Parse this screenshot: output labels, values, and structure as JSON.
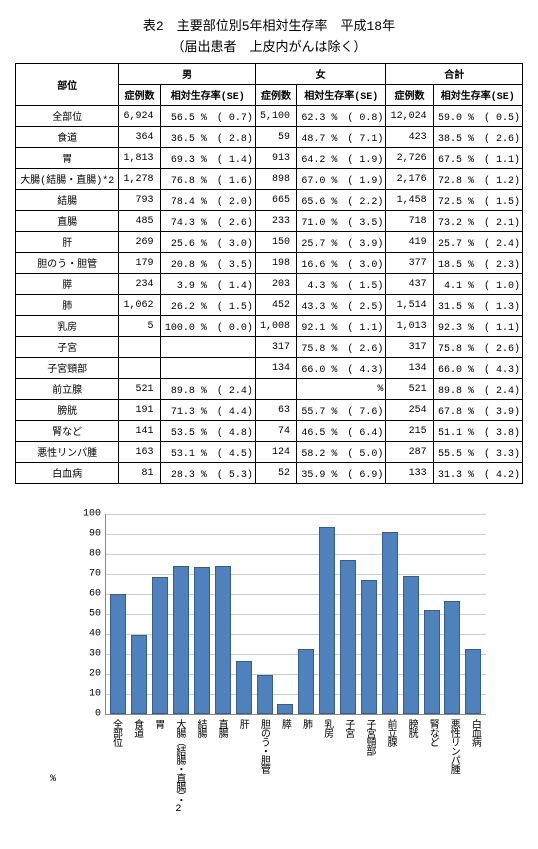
{
  "title": "表2　主要部位別5年相対生存率　平成18年",
  "subtitle": "（届出患者　上皮内がんは除く）",
  "headers": {
    "site": "部位",
    "male": "男",
    "female": "女",
    "total": "合計",
    "cases": "症例数",
    "survival": "相対生存率(SE)"
  },
  "rows": [
    {
      "site": "全部位",
      "m_n": "6,924",
      "m_s": "56.5 %",
      "m_se": "( 0.7)",
      "f_n": "5,100",
      "f_s": "62.3 %",
      "f_se": "( 0.8)",
      "t_n": "12,024",
      "t_s": "59.0 %",
      "t_se": "( 0.5)"
    },
    {
      "site": "食道",
      "m_n": "364",
      "m_s": "36.5 %",
      "m_se": "( 2.8)",
      "f_n": "59",
      "f_s": "48.7 %",
      "f_se": "( 7.1)",
      "t_n": "423",
      "t_s": "38.5 %",
      "t_se": "( 2.6)"
    },
    {
      "site": "胃",
      "m_n": "1,813",
      "m_s": "69.3 %",
      "m_se": "( 1.4)",
      "f_n": "913",
      "f_s": "64.2 %",
      "f_se": "( 1.9)",
      "t_n": "2,726",
      "t_s": "67.5 %",
      "t_se": "( 1.1)"
    },
    {
      "site": "大腸(結腸・直腸)*2",
      "m_n": "1,278",
      "m_s": "76.8 %",
      "m_se": "( 1.6)",
      "f_n": "898",
      "f_s": "67.0 %",
      "f_se": "( 1.9)",
      "t_n": "2,176",
      "t_s": "72.8 %",
      "t_se": "( 1.2)"
    },
    {
      "site": "結腸",
      "m_n": "793",
      "m_s": "78.4 %",
      "m_se": "( 2.0)",
      "f_n": "665",
      "f_s": "65.6 %",
      "f_se": "( 2.2)",
      "t_n": "1,458",
      "t_s": "72.5 %",
      "t_se": "( 1.5)"
    },
    {
      "site": "直腸",
      "m_n": "485",
      "m_s": "74.3 %",
      "m_se": "( 2.6)",
      "f_n": "233",
      "f_s": "71.0 %",
      "f_se": "( 3.5)",
      "t_n": "718",
      "t_s": "73.2 %",
      "t_se": "( 2.1)"
    },
    {
      "site": "肝",
      "m_n": "269",
      "m_s": "25.6 %",
      "m_se": "( 3.0)",
      "f_n": "150",
      "f_s": "25.7 %",
      "f_se": "( 3.9)",
      "t_n": "419",
      "t_s": "25.7 %",
      "t_se": "( 2.4)"
    },
    {
      "site": "胆のう・胆管",
      "m_n": "179",
      "m_s": "20.8 %",
      "m_se": "( 3.5)",
      "f_n": "198",
      "f_s": "16.6 %",
      "f_se": "( 3.0)",
      "t_n": "377",
      "t_s": "18.5 %",
      "t_se": "( 2.3)"
    },
    {
      "site": "膵",
      "m_n": "234",
      "m_s": "3.9 %",
      "m_se": "( 1.4)",
      "f_n": "203",
      "f_s": "4.3 %",
      "f_se": "( 1.5)",
      "t_n": "437",
      "t_s": "4.1 %",
      "t_se": "( 1.0)"
    },
    {
      "site": "肺",
      "m_n": "1,062",
      "m_s": "26.2 %",
      "m_se": "( 1.5)",
      "f_n": "452",
      "f_s": "43.3 %",
      "f_se": "( 2.5)",
      "t_n": "1,514",
      "t_s": "31.5 %",
      "t_se": "( 1.3)"
    },
    {
      "site": "乳房",
      "m_n": "5",
      "m_s": "100.0 %",
      "m_se": "( 0.0)",
      "f_n": "1,008",
      "f_s": "92.1 %",
      "f_se": "( 1.1)",
      "t_n": "1,013",
      "t_s": "92.3 %",
      "t_se": "( 1.1)"
    },
    {
      "site": "子宮",
      "m_n": "",
      "m_s": "",
      "m_se": "",
      "f_n": "317",
      "f_s": "75.8 %",
      "f_se": "( 2.6)",
      "t_n": "317",
      "t_s": "75.8 %",
      "t_se": "( 2.6)"
    },
    {
      "site": "子宮頸部",
      "m_n": "",
      "m_s": "",
      "m_se": "",
      "f_n": "134",
      "f_s": "66.0 %",
      "f_se": "( 4.3)",
      "t_n": "134",
      "t_s": "66.0 %",
      "t_se": "( 4.3)"
    },
    {
      "site": "前立腺",
      "m_n": "521",
      "m_s": "89.8 %",
      "m_se": "( 2.4)",
      "f_n": "",
      "f_s": "%",
      "f_se": "",
      "t_n": "521",
      "t_s": "89.8 %",
      "t_se": "( 2.4)"
    },
    {
      "site": "膀胱",
      "m_n": "191",
      "m_s": "71.3 %",
      "m_se": "( 4.4)",
      "f_n": "63",
      "f_s": "55.7 %",
      "f_se": "( 7.6)",
      "t_n": "254",
      "t_s": "67.8 %",
      "t_se": "( 3.9)"
    },
    {
      "site": "腎など",
      "m_n": "141",
      "m_s": "53.5 %",
      "m_se": "( 4.8)",
      "f_n": "74",
      "f_s": "46.5 %",
      "f_se": "( 6.4)",
      "t_n": "215",
      "t_s": "51.1 %",
      "t_se": "( 3.8)"
    },
    {
      "site": "悪性リンパ腫",
      "m_n": "163",
      "m_s": "53.1 %",
      "m_se": "( 4.5)",
      "f_n": "124",
      "f_s": "58.2 %",
      "f_se": "( 5.0)",
      "t_n": "287",
      "t_s": "55.5 %",
      "t_se": "( 3.3)"
    },
    {
      "site": "白血病",
      "m_n": "81",
      "m_s": "28.3 %",
      "m_se": "( 5.3)",
      "f_n": "52",
      "f_s": "35.9 %",
      "f_se": "( 6.9)",
      "t_n": "133",
      "t_s": "31.3 %",
      "t_se": "( 4.2)"
    }
  ],
  "chart": {
    "type": "bar",
    "ylim": [
      0,
      100
    ],
    "ytick_step": 10,
    "pct_label": "%",
    "bar_color": "#4f81bd",
    "bar_border": "#385d8a",
    "grid_color": "#cccccc",
    "categories": [
      "全部位",
      "食道",
      "胃",
      "大腸（結腸・直腸）・2",
      "結腸",
      "直腸",
      "肝",
      "胆のう・胆管",
      "膵",
      "肺",
      "乳房",
      "子宮",
      "子宮頸部",
      "前立腺",
      "膀胱",
      "腎など",
      "悪性リンパ腫",
      "白血病"
    ],
    "values": [
      59.0,
      38.5,
      67.5,
      72.8,
      72.5,
      73.2,
      25.7,
      18.5,
      4.1,
      31.5,
      92.3,
      75.8,
      66.0,
      89.8,
      67.8,
      51.1,
      55.5,
      31.3
    ]
  }
}
